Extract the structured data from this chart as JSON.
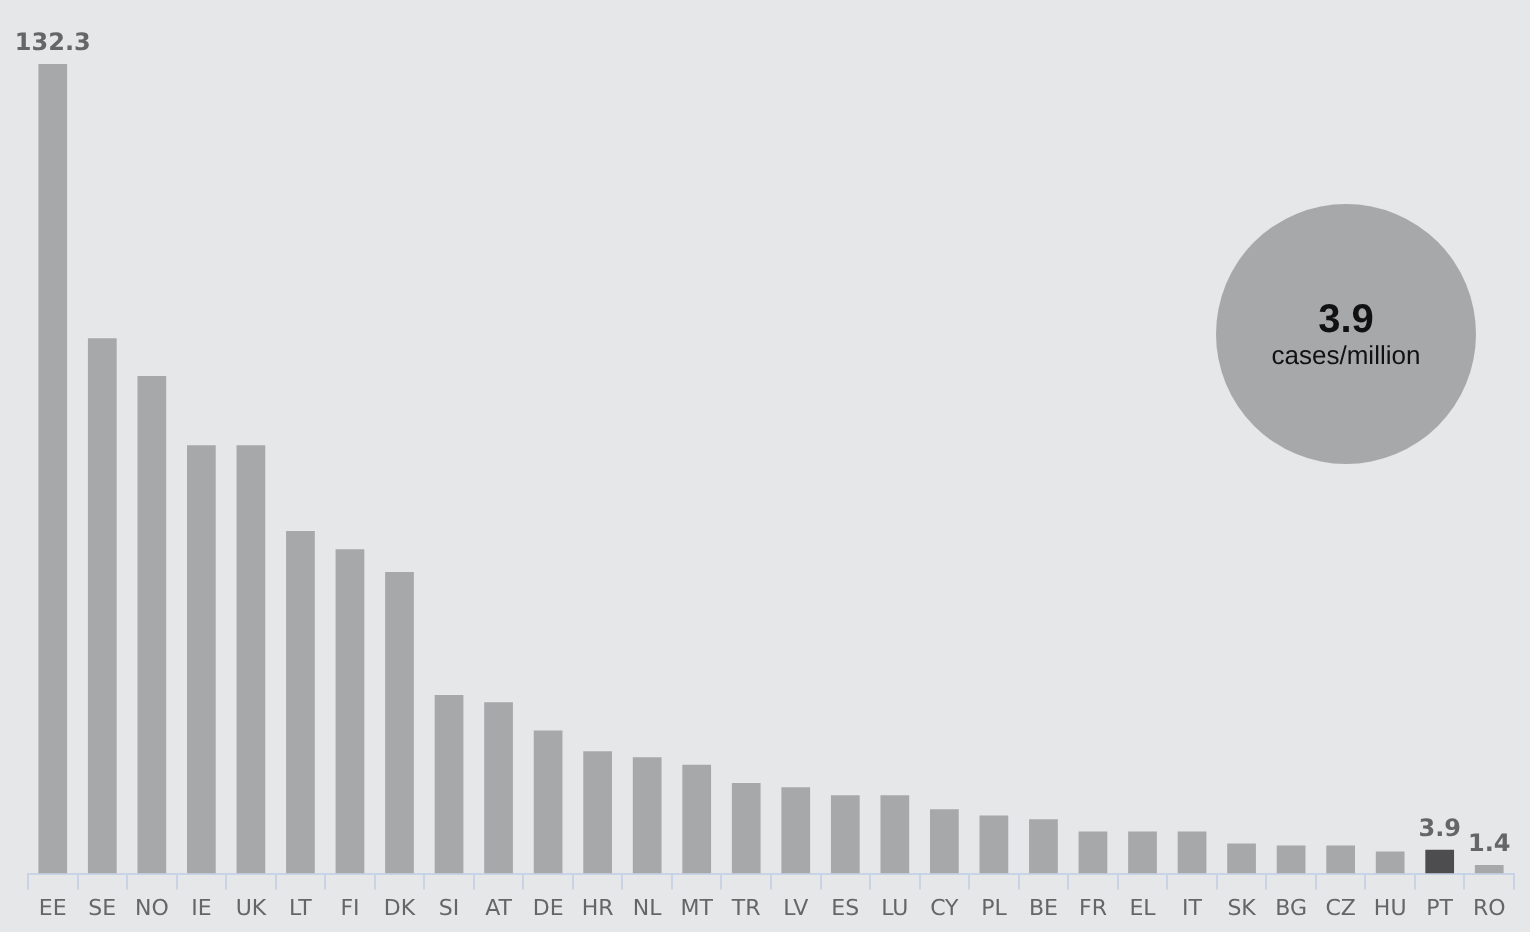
{
  "chart_data": {
    "type": "bar",
    "categories": [
      "EE",
      "SE",
      "NO",
      "IE",
      "UK",
      "LT",
      "FI",
      "DK",
      "SI",
      "AT",
      "DE",
      "HR",
      "NL",
      "MT",
      "TR",
      "LV",
      "ES",
      "LU",
      "CY",
      "PL",
      "BE",
      "FR",
      "EL",
      "IT",
      "SK",
      "BG",
      "CZ",
      "HU",
      "PT",
      "RO"
    ],
    "values": [
      132.3,
      87.5,
      81.3,
      70,
      70,
      56,
      53,
      49.3,
      29.2,
      28,
      23.4,
      20,
      19,
      17.8,
      14.8,
      14.1,
      12.8,
      12.8,
      10.5,
      9.5,
      8.9,
      6.9,
      6.9,
      6.9,
      4.9,
      4.6,
      4.6,
      3.6,
      3.9,
      1.4
    ],
    "colors": [
      "#a7a8aa",
      "#a7a8aa",
      "#a7a8aa",
      "#a7a8aa",
      "#a7a8aa",
      "#a7a8aa",
      "#a7a8aa",
      "#a7a8aa",
      "#a7a8aa",
      "#a7a8aa",
      "#a7a8aa",
      "#a7a8aa",
      "#a7a8aa",
      "#a7a8aa",
      "#a7a8aa",
      "#a7a8aa",
      "#a7a8aa",
      "#a7a8aa",
      "#a7a8aa",
      "#a7a8aa",
      "#a7a8aa",
      "#a7a8aa",
      "#a7a8aa",
      "#a7a8aa",
      "#a7a8aa",
      "#a7a8aa",
      "#a7a8aa",
      "#a7a8aa",
      "#4d4d4f",
      "#a7a8aa"
    ],
    "value_labels": [
      "132.3",
      null,
      null,
      null,
      null,
      null,
      null,
      null,
      null,
      null,
      null,
      null,
      null,
      null,
      null,
      null,
      null,
      null,
      null,
      null,
      null,
      null,
      null,
      null,
      null,
      null,
      null,
      null,
      "3.9",
      "1.4"
    ],
    "annotations": [
      "3.9",
      "cases/million"
    ],
    "grid": false,
    "legend": false
  }
}
